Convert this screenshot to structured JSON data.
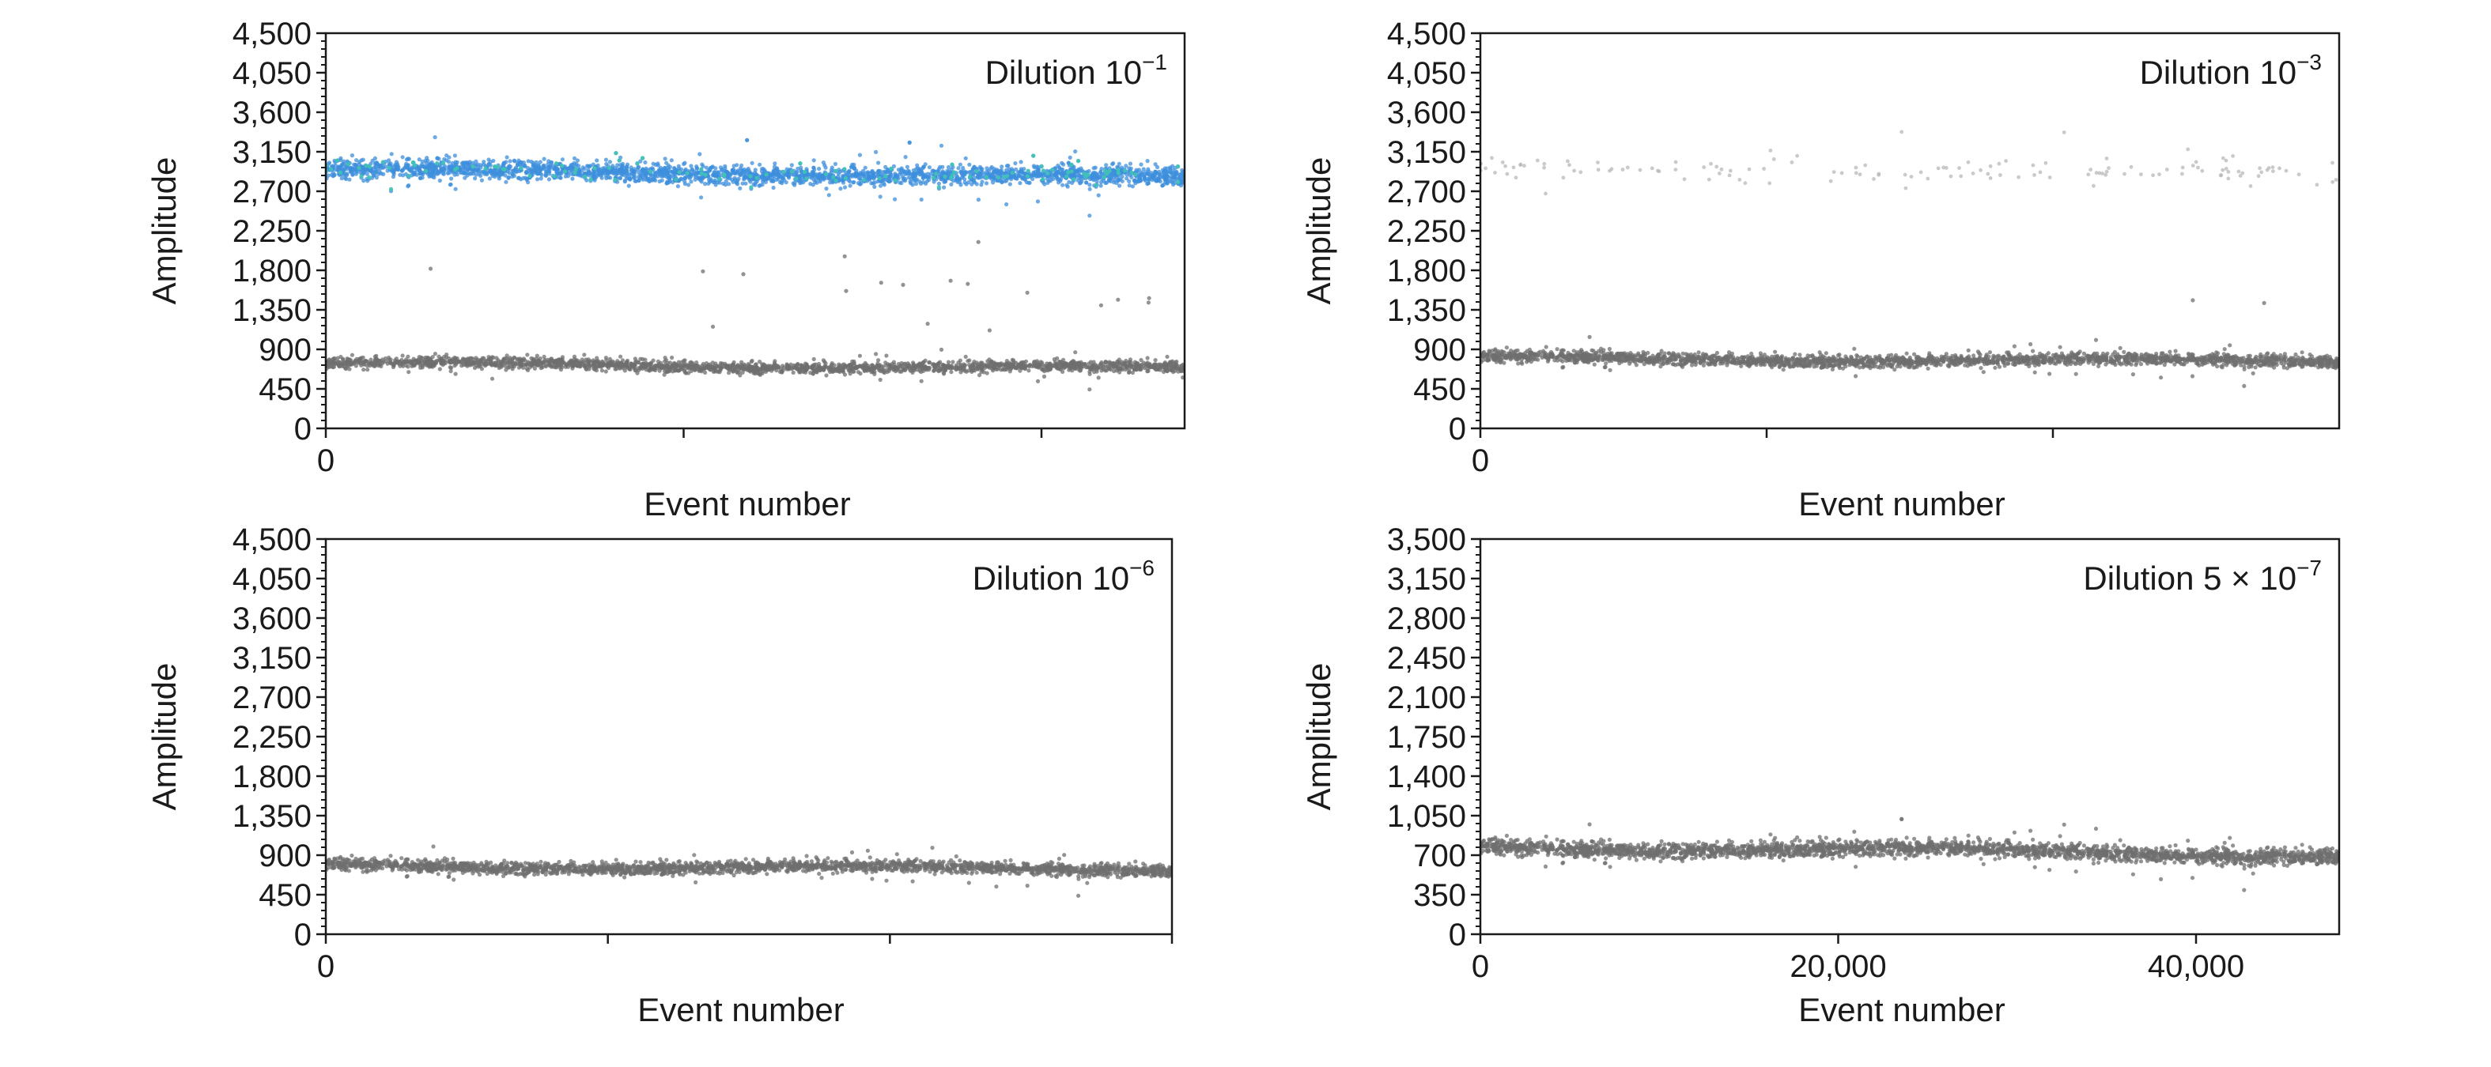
{
  "colors": {
    "negative_droplets": "#6f6f6f",
    "positive_droplets": "#3d8fdc",
    "positive_accent": "#3fc4b4",
    "sparse_positive": "#b8b8b8",
    "axis": "#1a1a1a"
  },
  "chart_data": [
    {
      "type": "scatter",
      "panel": "top-left",
      "title_base": "Dilution 10",
      "title_exponent": "−1",
      "xlabel": "Event number",
      "ylabel": "Amplitude",
      "ylim": [
        0,
        4500
      ],
      "yticks": [
        "0",
        "450",
        "900",
        "1,350",
        "1,800",
        "2,250",
        "2,700",
        "3,150",
        "3,600",
        "4,050",
        "4,500"
      ],
      "xlim": [
        0,
        48000
      ],
      "xticks": [
        0,
        20000,
        40000
      ],
      "xtick_labels": [
        "0",
        "",
        ""
      ],
      "series": [
        {
          "role": "negative",
          "count": 2200,
          "y_start": 740,
          "y_end": 680,
          "spread": 55
        },
        {
          "role": "positive",
          "count": 2600,
          "y_start": 2950,
          "y_end": 2850,
          "spread": 95
        },
        {
          "role": "positive-accent",
          "count": 120,
          "y_start": 2960,
          "y_end": 2860,
          "spread": 90
        },
        {
          "role": "scatter-between",
          "count": 18,
          "y_min": 1100,
          "y_max": 2300
        }
      ]
    },
    {
      "type": "scatter",
      "panel": "top-right",
      "title_base": "Dilution 10",
      "title_exponent": "−3",
      "xlabel": "Event number",
      "ylabel": "Amplitude",
      "ylim": [
        0,
        4500
      ],
      "yticks": [
        "0",
        "450",
        "900",
        "1,350",
        "1,800",
        "2,250",
        "2,700",
        "3,150",
        "3,600",
        "4,050",
        "4,500"
      ],
      "xlim": [
        0,
        48000
      ],
      "xticks": [
        0,
        16000,
        32000
      ],
      "xtick_labels": [
        "0",
        "",
        ""
      ],
      "series": [
        {
          "role": "negative",
          "count": 2400,
          "y_start": 800,
          "y_end": 760,
          "spread": 60
        },
        {
          "role": "positive-sparse",
          "count": 140,
          "y_start": 2950,
          "y_end": 2900,
          "spread": 110
        },
        {
          "role": "scatter-between",
          "count": 2,
          "y_min": 1400,
          "y_max": 1500
        }
      ]
    },
    {
      "type": "scatter",
      "panel": "bottom-left",
      "title_base": "Dilution 10",
      "title_exponent": "−6",
      "xlabel": "Event number",
      "ylabel": "Amplitude",
      "ylim": [
        0,
        4500
      ],
      "yticks": [
        "0",
        "450",
        "900",
        "1,350",
        "1,800",
        "2,250",
        "2,700",
        "3,150",
        "3,600",
        "4,050",
        "4,500"
      ],
      "xlim": [
        0,
        48000
      ],
      "xticks": [
        0,
        16000,
        32000,
        48000
      ],
      "xtick_labels": [
        "0",
        "",
        "",
        ""
      ],
      "series": [
        {
          "role": "negative",
          "count": 2400,
          "y_start": 780,
          "y_end": 740,
          "spread": 60
        }
      ]
    },
    {
      "type": "scatter",
      "panel": "bottom-right",
      "title_base": "Dilution 5 × 10",
      "title_exponent": "−7",
      "xlabel": "Event number",
      "ylabel": "Amplitude",
      "ylim": [
        0,
        3500
      ],
      "yticks": [
        "0",
        "350",
        "700",
        "1,050",
        "1,400",
        "1,750",
        "2,100",
        "2,450",
        "2,800",
        "3,150",
        "3,500"
      ],
      "xlim": [
        0,
        48000
      ],
      "xticks": [
        0,
        20000,
        40000
      ],
      "xtick_labels": [
        "0",
        "20,000",
        "40,000"
      ],
      "series": [
        {
          "role": "negative",
          "count": 2600,
          "y_start": 780,
          "y_end": 700,
          "spread": 60
        }
      ]
    }
  ]
}
